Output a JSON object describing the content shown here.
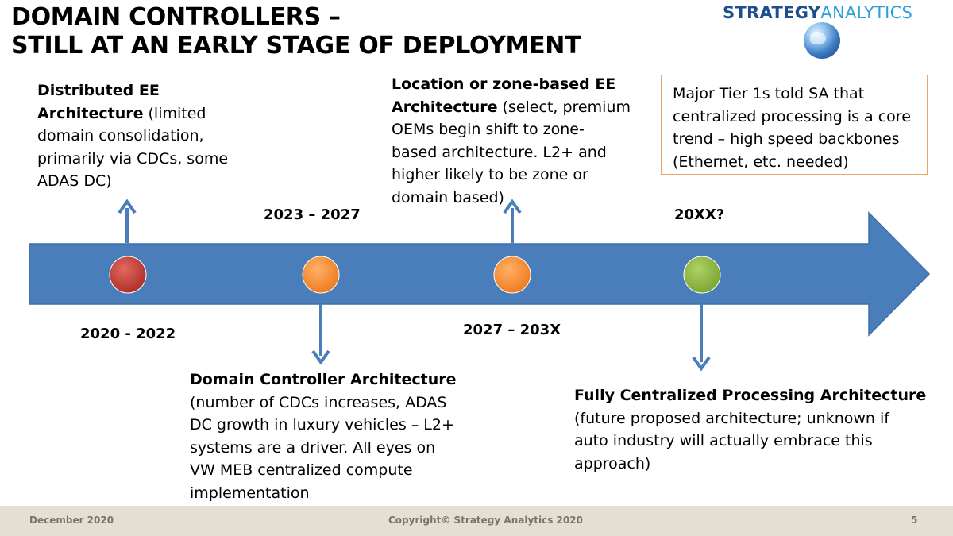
{
  "title": {
    "line1": "DOMAIN CONTROLLERS –",
    "line2": "STILL AT AN EARLY STAGE OF DEPLOYMENT"
  },
  "logo": {
    "word1": "STRATEGY",
    "word2": "ANALYTICS"
  },
  "colors": {
    "arrow": "#4a7ebb",
    "dot_red": "#c0392b",
    "dot_orange": "#f28a30",
    "dot_green": "#8ab63c",
    "callout_border": "#e8a46a",
    "footer_bg": "#e3e0d3"
  },
  "stages": [
    {
      "date": "2020 - 2022",
      "heading_l1": "Distributed EE",
      "heading_l2": "Architecture",
      "text_l2": " (limited",
      "text_l3": "domain consolidation,",
      "text_l4": "primarily via CDCs, some",
      "text_l5": "ADAS DC)"
    },
    {
      "date": "2023 – 2027",
      "heading": "Domain Controller Architecture",
      "lines": [
        "(number of CDCs increases, ADAS",
        "DC growth in luxury vehicles – L2+",
        "systems are a driver. All eyes on",
        "VW MEB centralized compute",
        "implementation"
      ]
    },
    {
      "date": "2027 – 203X",
      "heading_l1": "Location or zone-based EE",
      "heading_l2": "Architecture",
      "text_l2": " (select, premium",
      "text_l3": "OEMs begin shift to zone-",
      "text_l4": "based architecture. L2+ and",
      "text_l5": "higher likely to be zone or",
      "text_l6": "domain based)"
    },
    {
      "date": "20XX?",
      "heading": "Fully Centralized Processing Architecture",
      "lines": [
        "(future proposed architecture; unknown if",
        "auto industry will actually embrace this",
        "approach)"
      ]
    }
  ],
  "callout": {
    "lines": [
      "Major Tier 1s told SA that",
      "centralized processing is a core",
      "trend – high speed backbones",
      "(Ethernet, etc. needed)"
    ]
  },
  "footer": {
    "date": "December 2020",
    "copyright": "Copyright© Strategy Analytics 2020",
    "page": "5"
  }
}
